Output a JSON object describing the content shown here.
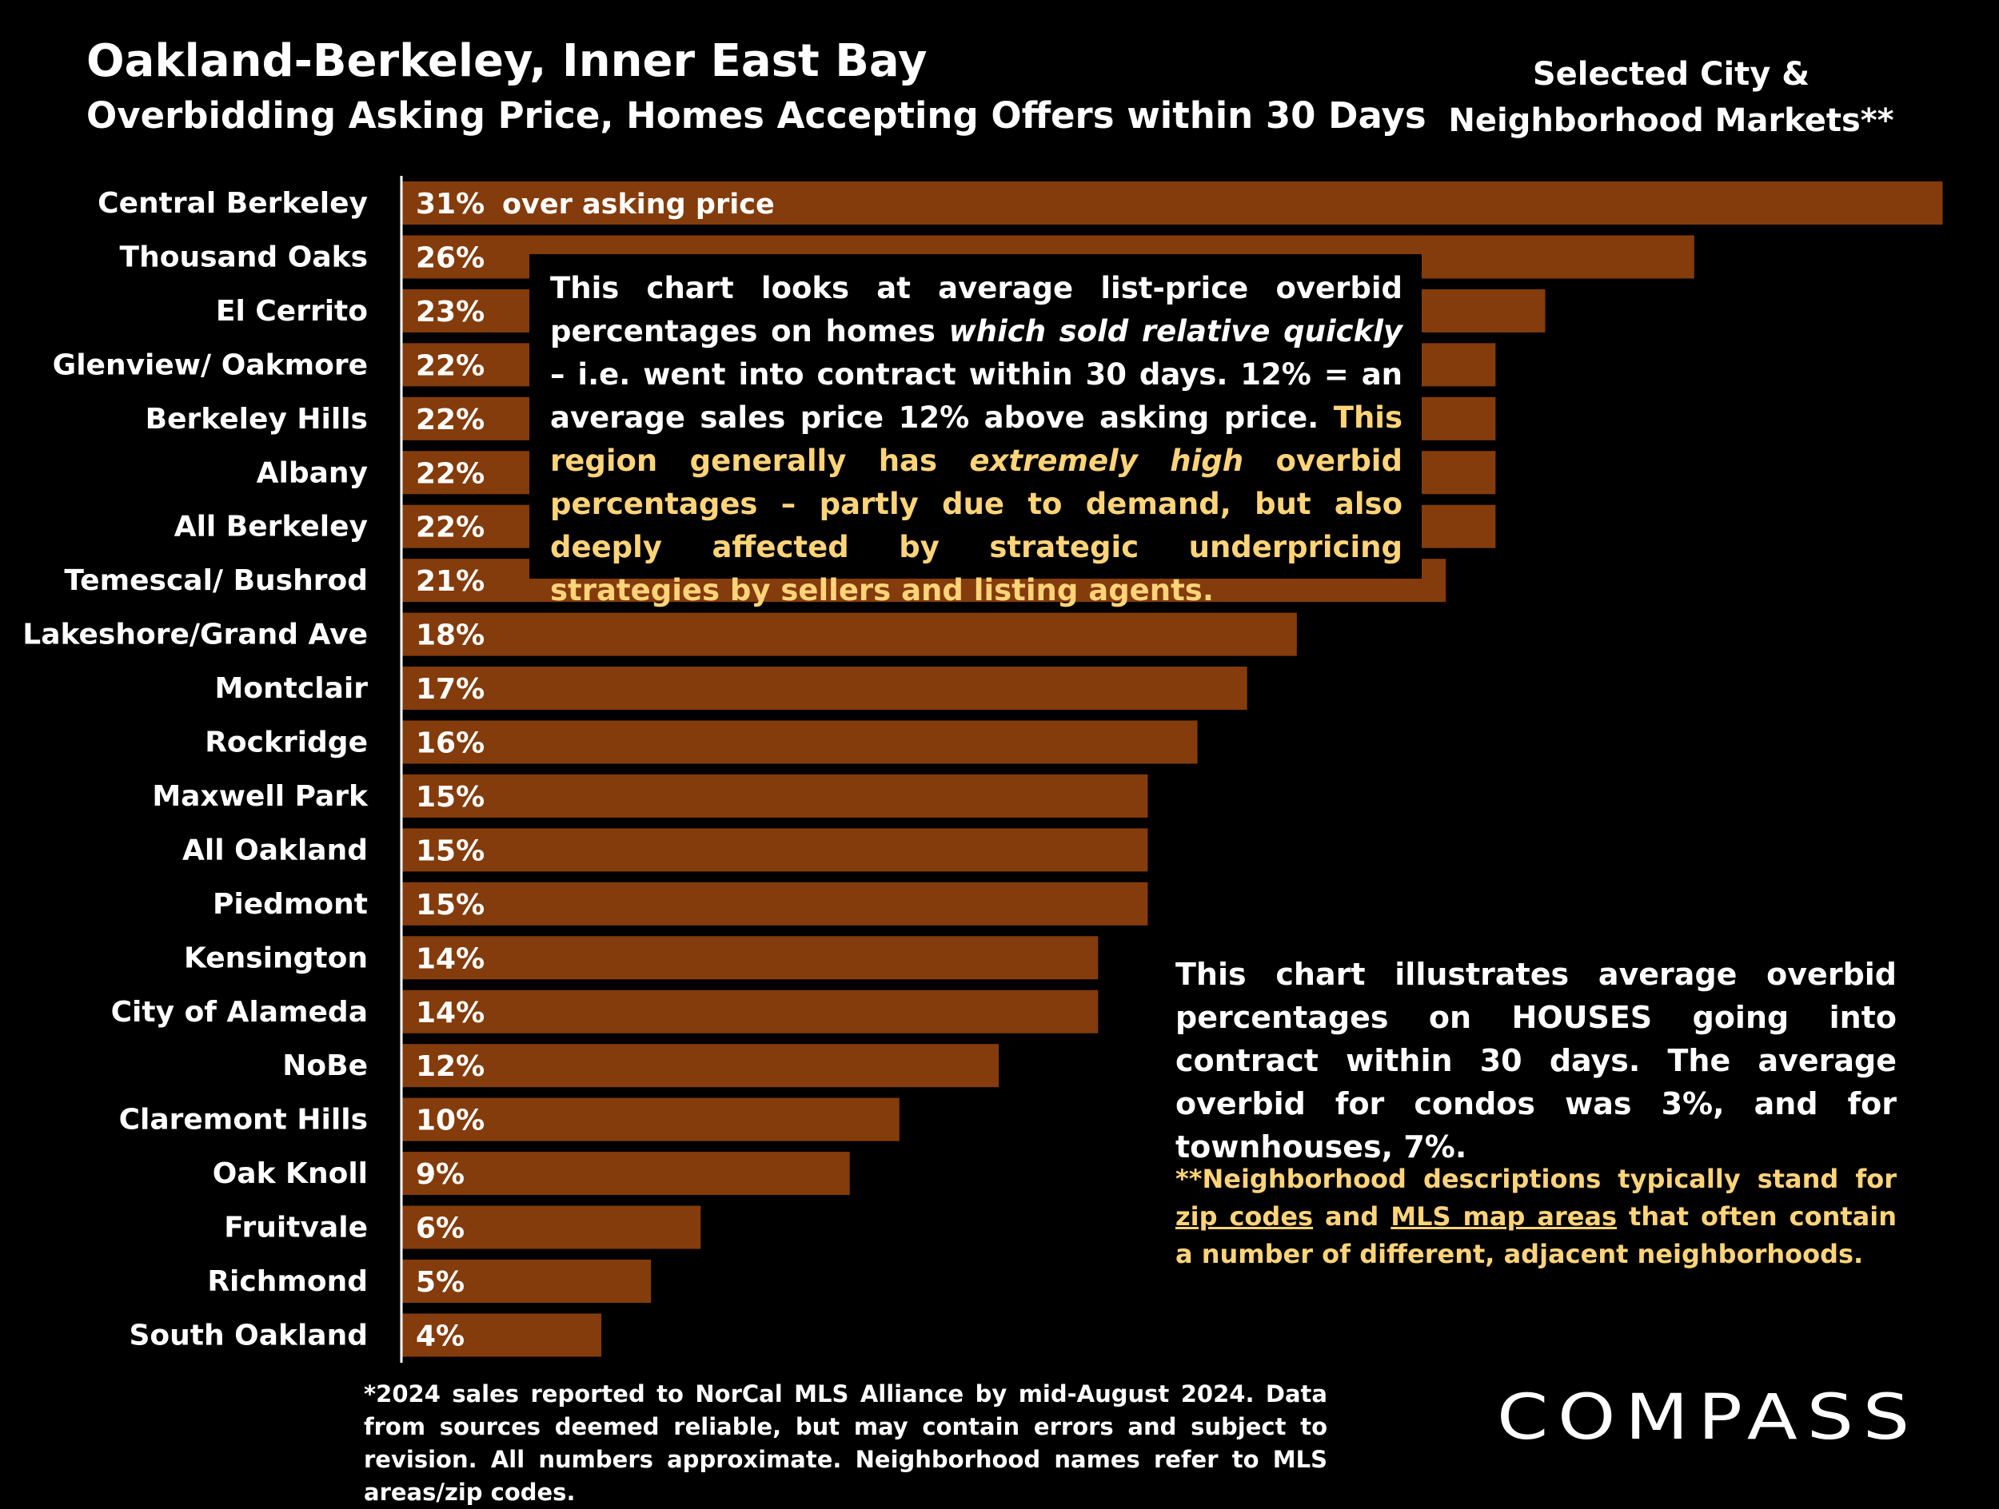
{
  "header": {
    "title": "Oakland-Berkeley, Inner East Bay",
    "subtitle": "Overbidding Asking Price, Homes Accepting Offers within 30 Days",
    "selected_line1": "Selected City &",
    "selected_line2": "Neighborhood Markets**"
  },
  "chart_data": {
    "type": "bar",
    "orientation": "horizontal",
    "title": "Overbidding Asking Price, Homes Accepting Offers within 30 Days",
    "categories": [
      "Central Berkeley",
      "Thousand Oaks",
      "El Cerrito",
      "Glenview/ Oakmore",
      "Berkeley Hills",
      "Albany",
      "All Berkeley",
      "Temescal/ Bushrod",
      "Lakeshore/Grand Ave",
      "Montclair",
      "Rockridge",
      "Maxwell Park",
      "All Oakland",
      "Piedmont",
      "Kensington",
      "City of Alameda",
      "NoBe",
      "Claremont Hills",
      "Oak Knoll",
      "Fruitvale",
      "Richmond",
      "South Oakland"
    ],
    "values": [
      31,
      26,
      23,
      22,
      22,
      22,
      22,
      21,
      18,
      17,
      16,
      15,
      15,
      15,
      14,
      14,
      12,
      10,
      9,
      6,
      5,
      4
    ],
    "value_labels": [
      "31%",
      "26%",
      "23%",
      "22%",
      "22%",
      "22%",
      "22%",
      "21%",
      "18%",
      "17%",
      "16%",
      "15%",
      "15%",
      "15%",
      "14%",
      "14%",
      "12%",
      "10%",
      "9%",
      "6%",
      "5%",
      "4%"
    ],
    "first_bar_annotation": "over asking price",
    "unit": "%",
    "xlim": [
      0,
      31
    ],
    "bar_color": "#843c0c",
    "grid": false
  },
  "notes": {
    "box_p1": "This chart looks at average list-price overbid percentages on homes ",
    "box_em1": "which sold relative quickly",
    "box_p2": " – i.e. went into contract within 30 days. 12% = an average sales price 12% above asking price. ",
    "box_gold1": "This region generally has ",
    "box_gold_em": "extremely high",
    "box_gold2": " overbid percentages – partly due to demand, but also deeply affected by strategic underpricing strategies by sellers and listing agents.",
    "houses_note": "This chart illustrates average overbid percentages on HOUSES going into contract within 30 days. The average overbid for condos was 3%, and for townhouses, 7%.",
    "nb_p1": "**Neighborhood descriptions typically stand for ",
    "nb_link1": "zip codes",
    "nb_p2": " and ",
    "nb_link2": "MLS map areas",
    "nb_p3": " that often contain a number of different, adjacent neighborhoods.",
    "footnote": "*2024 sales reported to NorCal MLS Alliance by mid-August 2024. Data from sources deemed reliable, but may contain errors and subject to revision. All numbers approximate. Neighborhood names refer to MLS areas/zip codes."
  },
  "brand": {
    "logo": "COMPASS"
  },
  "colors": {
    "background": "#000000",
    "bar": "#843c0c",
    "highlight": "#ffd479",
    "text": "#ffffff"
  }
}
